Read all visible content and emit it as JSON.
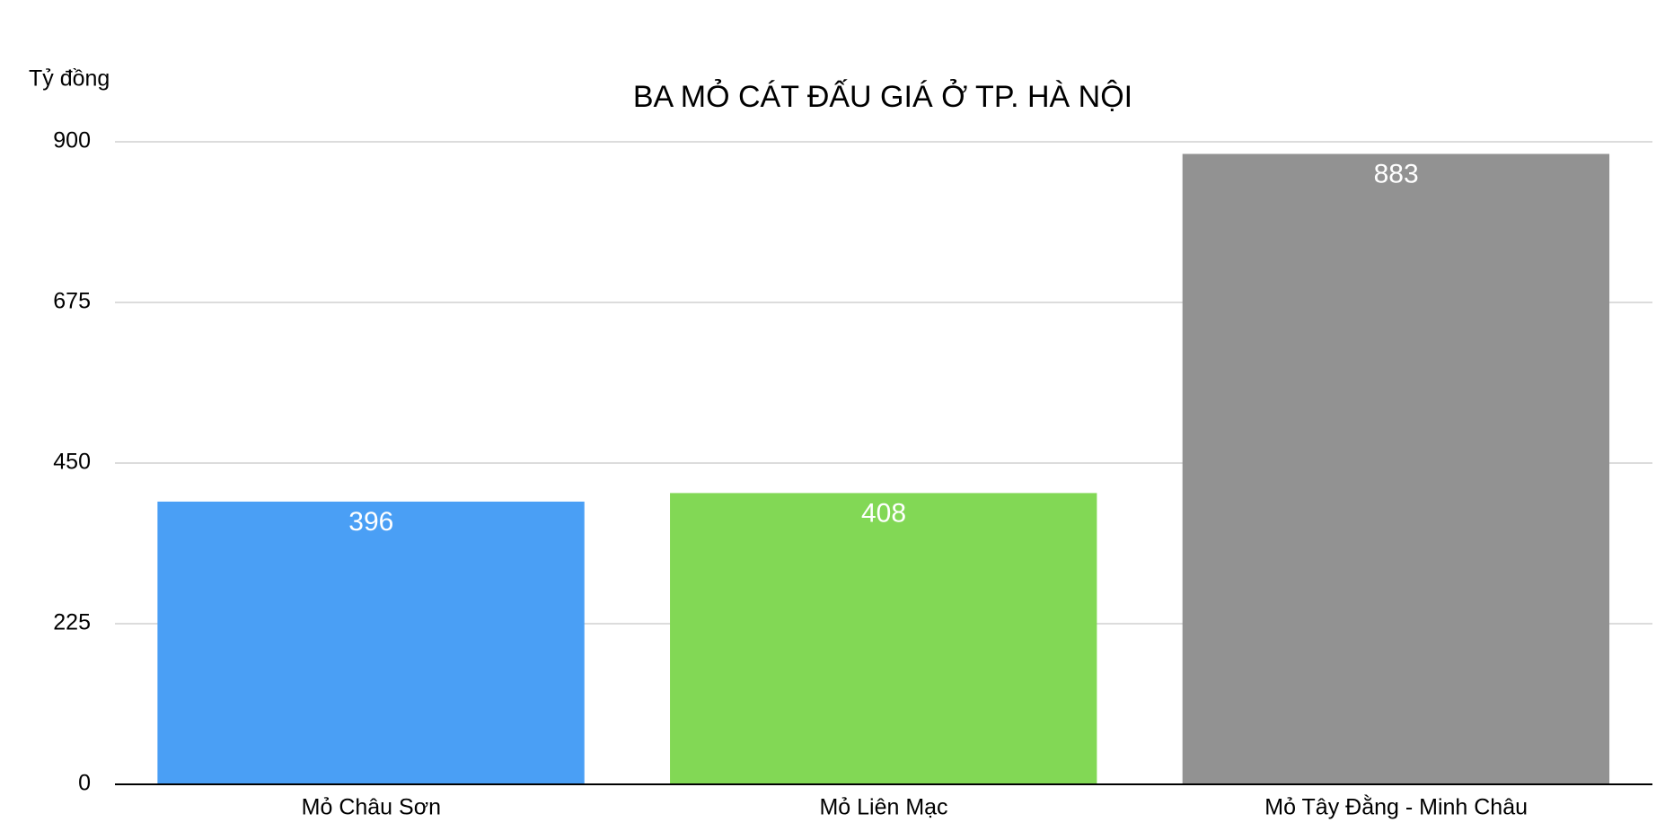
{
  "chart_data": {
    "type": "bar",
    "title": "BA MỎ CÁT ĐẤU GIÁ Ở TP. HÀ NỘI",
    "y_label": "Tỷ đồng",
    "categories": [
      "Mỏ Châu Sơn",
      "Mỏ Liên Mạc",
      "Mỏ Tây Đằng - Minh Châu"
    ],
    "values": [
      396,
      408,
      883
    ],
    "colors": [
      "#4a9ff5",
      "#82d855",
      "#929292"
    ],
    "ylim": [
      0,
      900
    ],
    "yticks": [
      0,
      225,
      450,
      675,
      900
    ],
    "grid": true
  }
}
